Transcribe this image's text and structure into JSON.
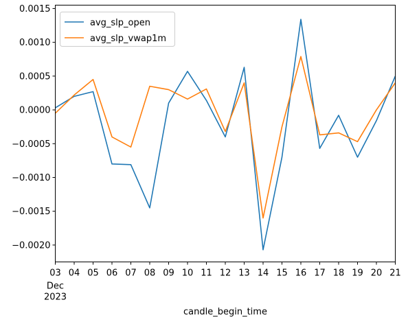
{
  "chart_data": {
    "type": "line",
    "xlabel": "candle_begin_time",
    "x_ticks": [
      "03",
      "04",
      "05",
      "06",
      "07",
      "08",
      "09",
      "10",
      "11",
      "12",
      "13",
      "14",
      "15",
      "16",
      "17",
      "18",
      "19",
      "20",
      "21"
    ],
    "x_tick_sub": [
      "Dec",
      "2023"
    ],
    "ylim": [
      -0.00225,
      0.00155
    ],
    "y_ticks": [
      -0.002,
      -0.0015,
      -0.001,
      -0.0005,
      0.0,
      0.0005,
      0.001,
      0.0015
    ],
    "y_tick_labels": [
      "−0.0020",
      "−0.0015",
      "−0.0010",
      "−0.0005",
      "0.0000",
      "0.0005",
      "0.0010",
      "0.0015"
    ],
    "grid": false,
    "legend_position": "top-left",
    "series": [
      {
        "name": "avg_slp_open",
        "color": "#1f77b4",
        "values": [
          3e-05,
          0.0002,
          0.00027,
          -0.0008,
          -0.00081,
          -0.00145,
          0.0001,
          0.00057,
          0.00014,
          -0.0004,
          0.00063,
          -0.00207,
          -0.0007,
          0.00134,
          -0.00057,
          -8e-05,
          -0.0007,
          -0.00016,
          0.0005
        ]
      },
      {
        "name": "avg_slp_vwap1m",
        "color": "#ff7f0e",
        "values": [
          -5e-05,
          0.00022,
          0.00045,
          -0.0004,
          -0.00055,
          0.00035,
          0.0003,
          0.00016,
          0.00031,
          -0.00032,
          0.0004,
          -0.0016,
          -0.00025,
          0.00079,
          -0.00037,
          -0.00034,
          -0.00047,
          0.0,
          0.0004
        ]
      }
    ]
  }
}
